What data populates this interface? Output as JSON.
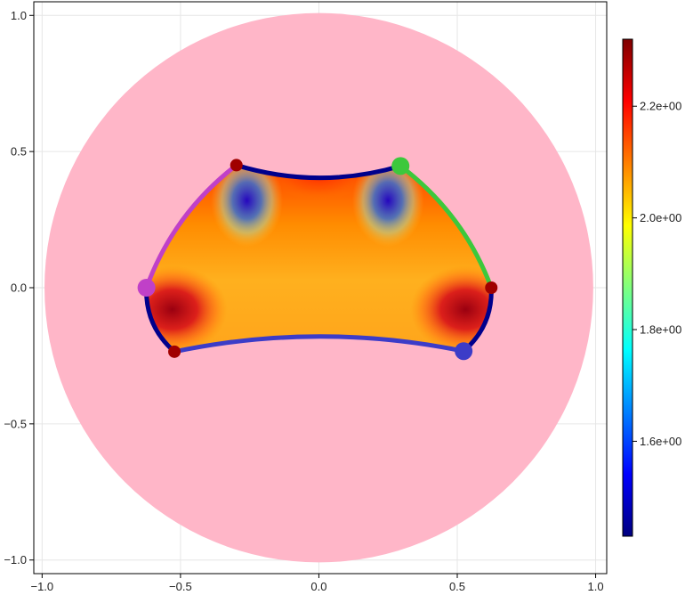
{
  "chart_data": {
    "type": "heatmap",
    "xlim": [
      -1.03,
      1.04
    ],
    "ylim": [
      -1.05,
      1.05
    ],
    "x_ticks": [
      -1.0,
      -0.5,
      0.0,
      0.5,
      1.0
    ],
    "x_tick_labels": [
      "−1.0",
      "−0.5",
      "0.0",
      "0.5",
      "1.0"
    ],
    "y_ticks": [
      -1.0,
      -0.5,
      0.0,
      0.5,
      1.0
    ],
    "y_tick_labels": [
      "−1.0",
      "−0.5",
      "0.0",
      "0.5",
      "1.0"
    ],
    "grid": true,
    "disk": {
      "center": [
        0,
        0
      ],
      "radius": 1.0,
      "color": "#ffb6c8"
    },
    "vertices": [
      {
        "x": 0.295,
        "y": 0.447,
        "color": "#3cc83c",
        "marked": true
      },
      {
        "x": 0.623,
        "y": 0.0,
        "color": "#a00000",
        "marked": false
      },
      {
        "x": 0.523,
        "y": -0.233,
        "color": "#3c3cc8",
        "marked": true
      },
      {
        "x": -0.522,
        "y": -0.235,
        "color": "#a00000",
        "marked": false
      },
      {
        "x": -0.623,
        "y": 0.0,
        "color": "#c040c8",
        "marked": true
      },
      {
        "x": -0.298,
        "y": 0.45,
        "color": "#a00000",
        "marked": false
      }
    ],
    "edges": [
      {
        "from": 0,
        "to": 1,
        "color": "#3cc83c",
        "bulge": 0.04
      },
      {
        "from": 1,
        "to": 2,
        "color": "#00008c",
        "bulge": 0.03
      },
      {
        "from": 2,
        "to": 3,
        "color": "#3c3cc8",
        "bulge": -0.055
      },
      {
        "from": 3,
        "to": 4,
        "color": "#00008c",
        "bulge": 0.03
      },
      {
        "from": 4,
        "to": 5,
        "color": "#c040c8",
        "bulge": 0.04
      },
      {
        "from": 5,
        "to": 0,
        "color": "#00008c",
        "bulge": -0.045
      }
    ],
    "colorbar": {
      "min": 1.43,
      "max": 2.32,
      "ticks": [
        1.6,
        1.8,
        2.0,
        2.2
      ],
      "tick_labels": [
        "1.6e+00",
        "1.8e+00",
        "2.0e+00",
        "2.2e+00"
      ],
      "colormap": "jet"
    }
  }
}
